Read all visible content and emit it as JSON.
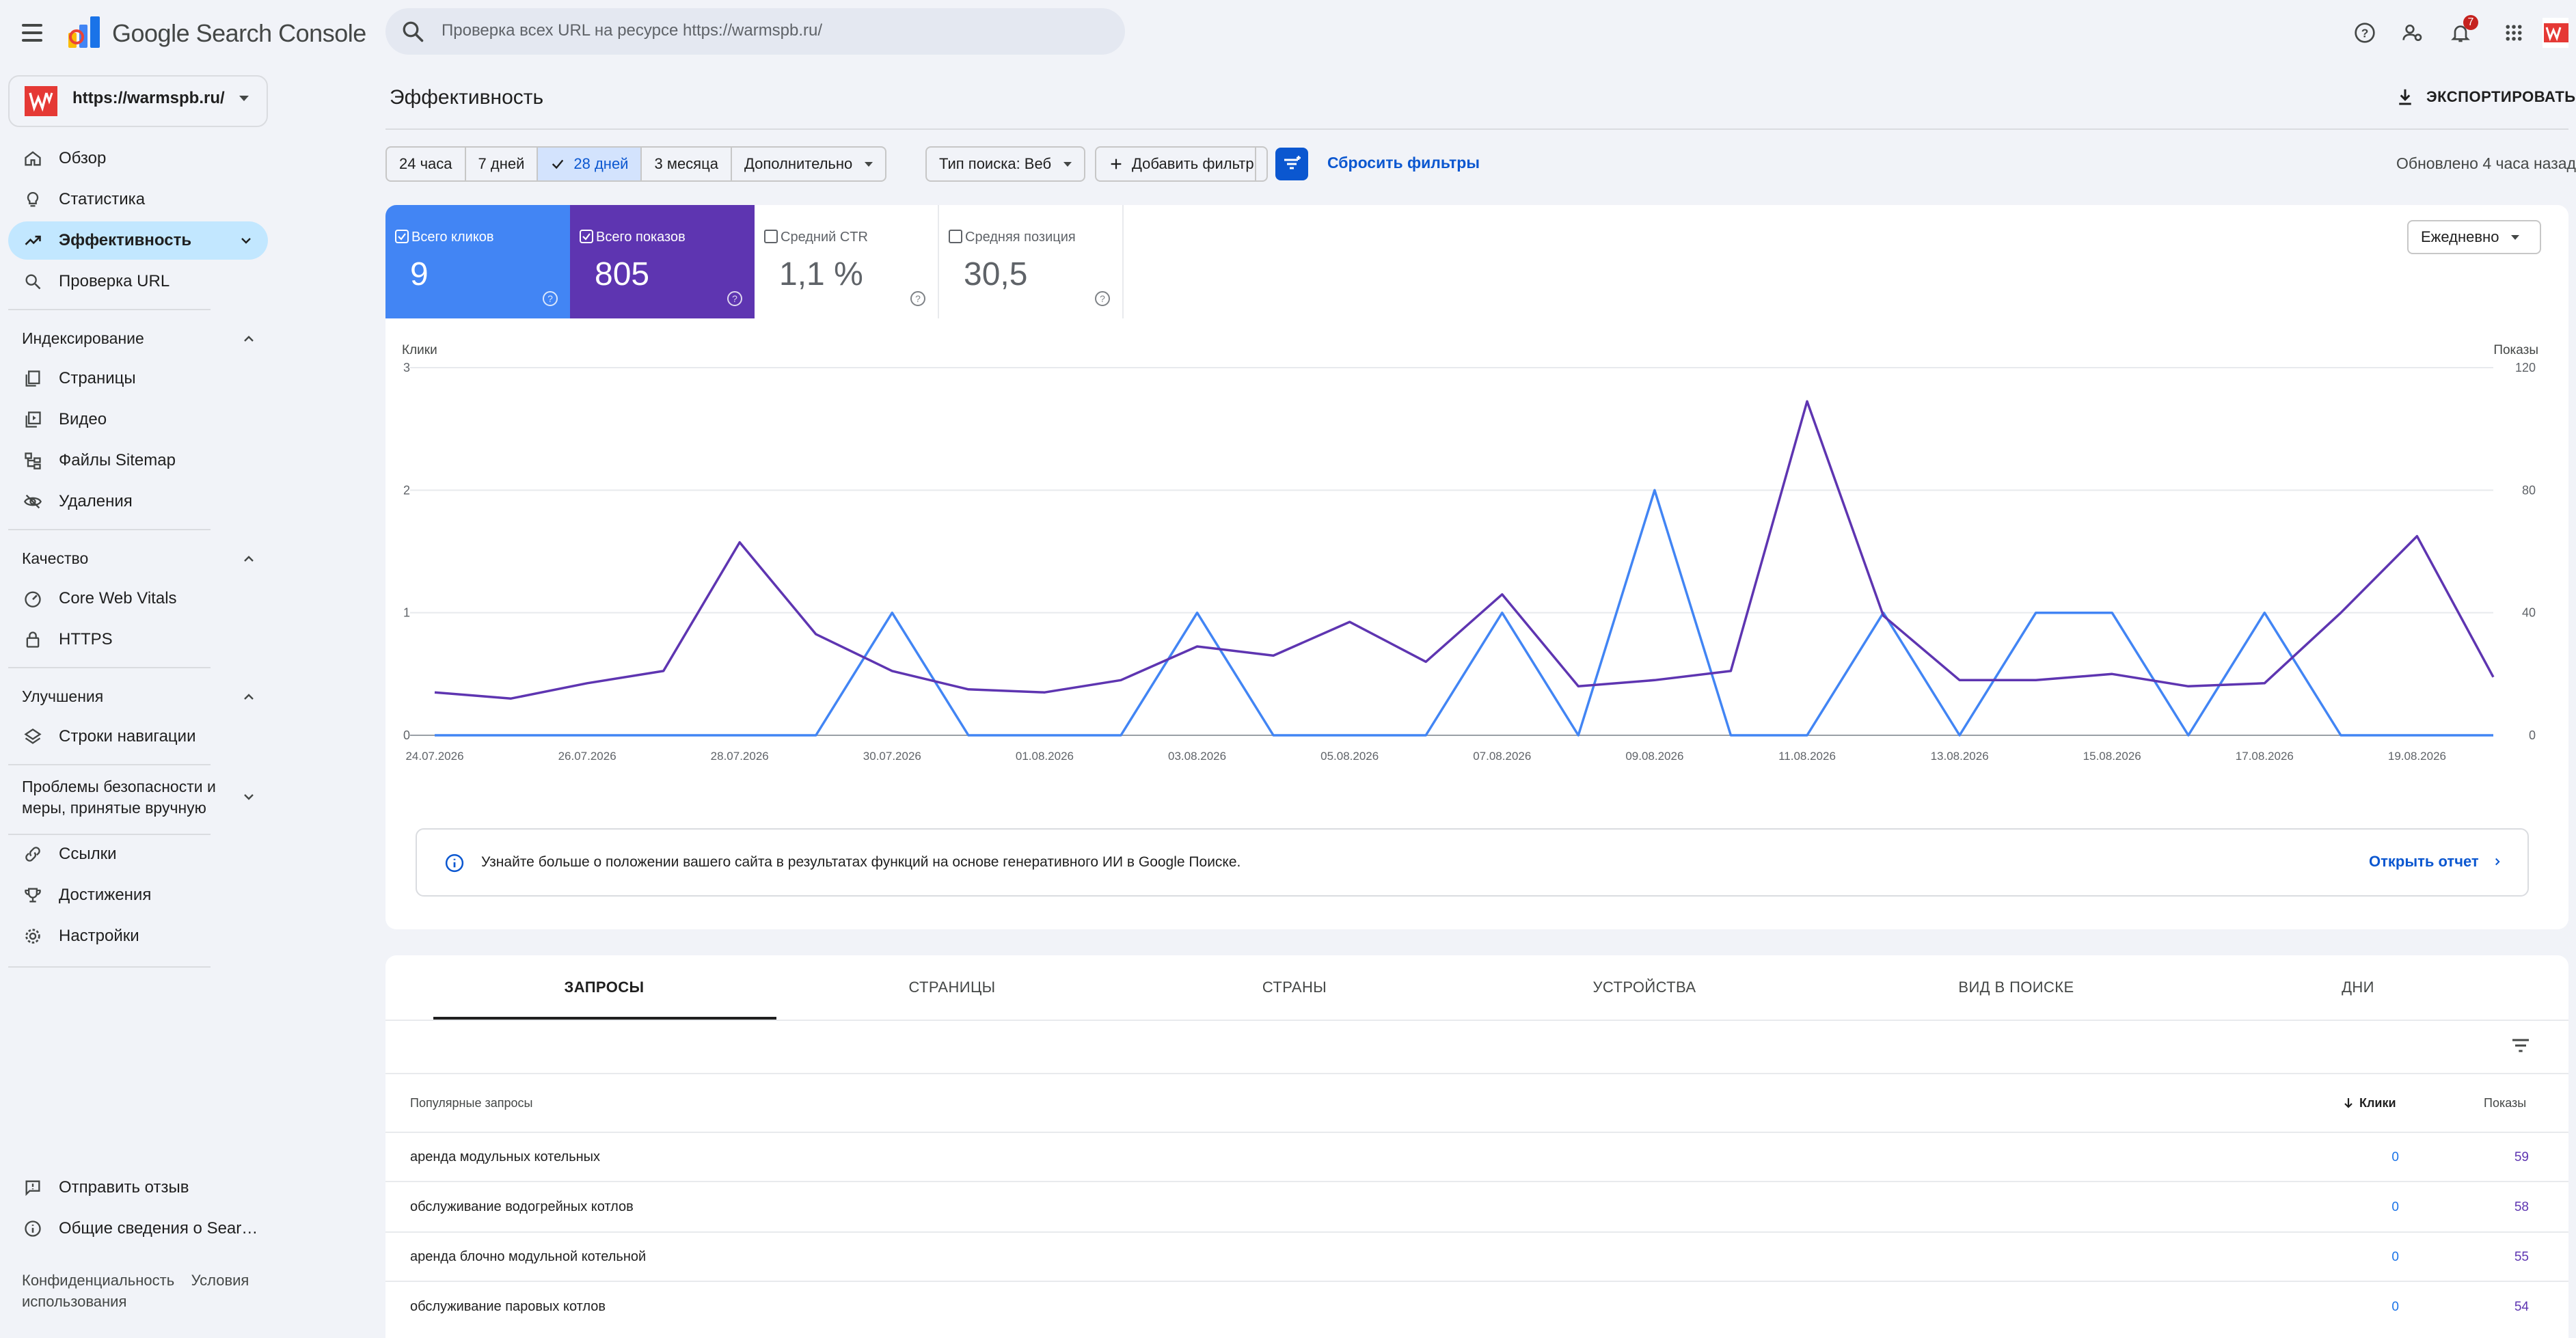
{
  "app": {
    "product_name": "Google Search Console"
  },
  "search": {
    "placeholder": "Проверка всех URL на ресурсе https://warmspb.ru/"
  },
  "topbar": {
    "notification_count": "7"
  },
  "property": {
    "name": "https://warmspb.ru/"
  },
  "nav": {
    "overview": "Обзор",
    "stats": "Статистика",
    "performance": "Эффективность",
    "url_inspection": "Проверка URL",
    "indexing_header": "Индексирование",
    "pages": "Страницы",
    "video": "Видео",
    "sitemaps": "Файлы Sitemap",
    "removals": "Удаления",
    "quality_header": "Качество",
    "cwv": "Core Web Vitals",
    "https": "HTTPS",
    "enhancements_header": "Улучшения",
    "breadcrumbs": "Строки навигации",
    "security_header_1": "Проблемы безопасности и",
    "security_header_2": "меры, принятые вручную",
    "links": "Ссылки",
    "achievements": "Достижения",
    "settings": "Настройки",
    "feedback": "Отправить отзыв",
    "about": "Общие сведения о Sear…",
    "privacy": "Конфиденциальность",
    "terms": "Условия",
    "terms_2": "использования"
  },
  "header": {
    "title": "Эффективность",
    "export": "ЭКСПОРТИРОВАТЬ",
    "updated": "Обновлено 4 часа назад"
  },
  "filters": {
    "ranges": [
      "24 часа",
      "7 дней",
      "28 дней",
      "3 месяца",
      "Дополнительно"
    ],
    "selected_range": "28 дней",
    "search_type": "Тип поиска: Веб",
    "add_filter": "Добавить фильтр",
    "reset": "Сбросить фильтры"
  },
  "metrics": {
    "clicks": {
      "label": "Всего кликов",
      "value": "9",
      "checked": true,
      "color": "#4285f4"
    },
    "impressions": {
      "label": "Всего показов",
      "value": "805",
      "checked": true,
      "color": "#5e35b1"
    },
    "ctr": {
      "label": "Средний CTR",
      "value": "1,1 %",
      "checked": false
    },
    "position": {
      "label": "Средняя позиция",
      "value": "30,5",
      "checked": false
    }
  },
  "granularity": "Ежедневно",
  "chart_data": {
    "type": "line",
    "x": [
      "24.07.2026",
      "25.07.2026",
      "26.07.2026",
      "27.07.2026",
      "28.07.2026",
      "29.07.2026",
      "30.07.2026",
      "31.07.2026",
      "01.08.2026",
      "02.08.2026",
      "03.08.2026",
      "04.08.2026",
      "05.08.2026",
      "06.08.2026",
      "07.08.2026",
      "08.08.2026",
      "09.08.2026",
      "10.08.2026",
      "11.08.2026",
      "12.08.2026",
      "13.08.2026",
      "14.08.2026",
      "15.08.2026",
      "16.08.2026",
      "17.08.2026",
      "18.08.2026",
      "19.08.2026",
      "20.08.2026"
    ],
    "x_tick_labels": [
      "24.07.2026",
      "26.07.2026",
      "28.07.2026",
      "30.07.2026",
      "01.08.2026",
      "03.08.2026",
      "05.08.2026",
      "07.08.2026",
      "09.08.2026",
      "11.08.2026",
      "13.08.2026",
      "15.08.2026",
      "17.08.2026",
      "19.08.2026"
    ],
    "left_axis": {
      "label": "Клики",
      "ticks": [
        "0",
        "1",
        "2",
        "3"
      ],
      "ylim": [
        0,
        3
      ]
    },
    "right_axis": {
      "label": "Показы",
      "ticks": [
        "0",
        "40",
        "80",
        "120"
      ],
      "ylim": [
        0,
        120
      ]
    },
    "series": [
      {
        "name": "Всего кликов",
        "axis": "left",
        "color": "#4285f4",
        "values": [
          0,
          0,
          0,
          0,
          0,
          0,
          1,
          0,
          0,
          0,
          1,
          0,
          0,
          0,
          1,
          0,
          2,
          0,
          0,
          1,
          0,
          1,
          1,
          0,
          1,
          0,
          0,
          0
        ]
      },
      {
        "name": "Всего показов",
        "axis": "right",
        "color": "#5e35b1",
        "values": [
          14,
          12,
          17,
          21,
          63,
          33,
          21,
          15,
          14,
          18,
          29,
          26,
          37,
          24,
          46,
          16,
          18,
          21,
          109,
          39,
          18,
          18,
          20,
          16,
          17,
          40,
          65,
          19
        ]
      }
    ],
    "grid": true,
    "legend": "none"
  },
  "banner": {
    "text": "Узнайте больше о положении вашего сайта в результатах функций на основе генеративного ИИ в Google Поиске.",
    "link": "Открыть отчет"
  },
  "tabs": [
    "ЗАПРОСЫ",
    "СТРАНИЦЫ",
    "СТРАНЫ",
    "УСТРОЙСТВА",
    "ВИД В ПОИСКЕ",
    "ДНИ"
  ],
  "table": {
    "columns": {
      "query": "Популярные запросы",
      "clicks": "Клики",
      "impressions": "Показы"
    },
    "rows": [
      {
        "query": "аренда модульных котельных",
        "clicks": "0",
        "impressions": "59"
      },
      {
        "query": "обслуживание водогрейных котлов",
        "clicks": "0",
        "impressions": "58"
      },
      {
        "query": "аренда блочно модульной котельной",
        "clicks": "0",
        "impressions": "55"
      },
      {
        "query": "обслуживание паровых котлов",
        "clicks": "0",
        "impressions": "54"
      }
    ]
  }
}
